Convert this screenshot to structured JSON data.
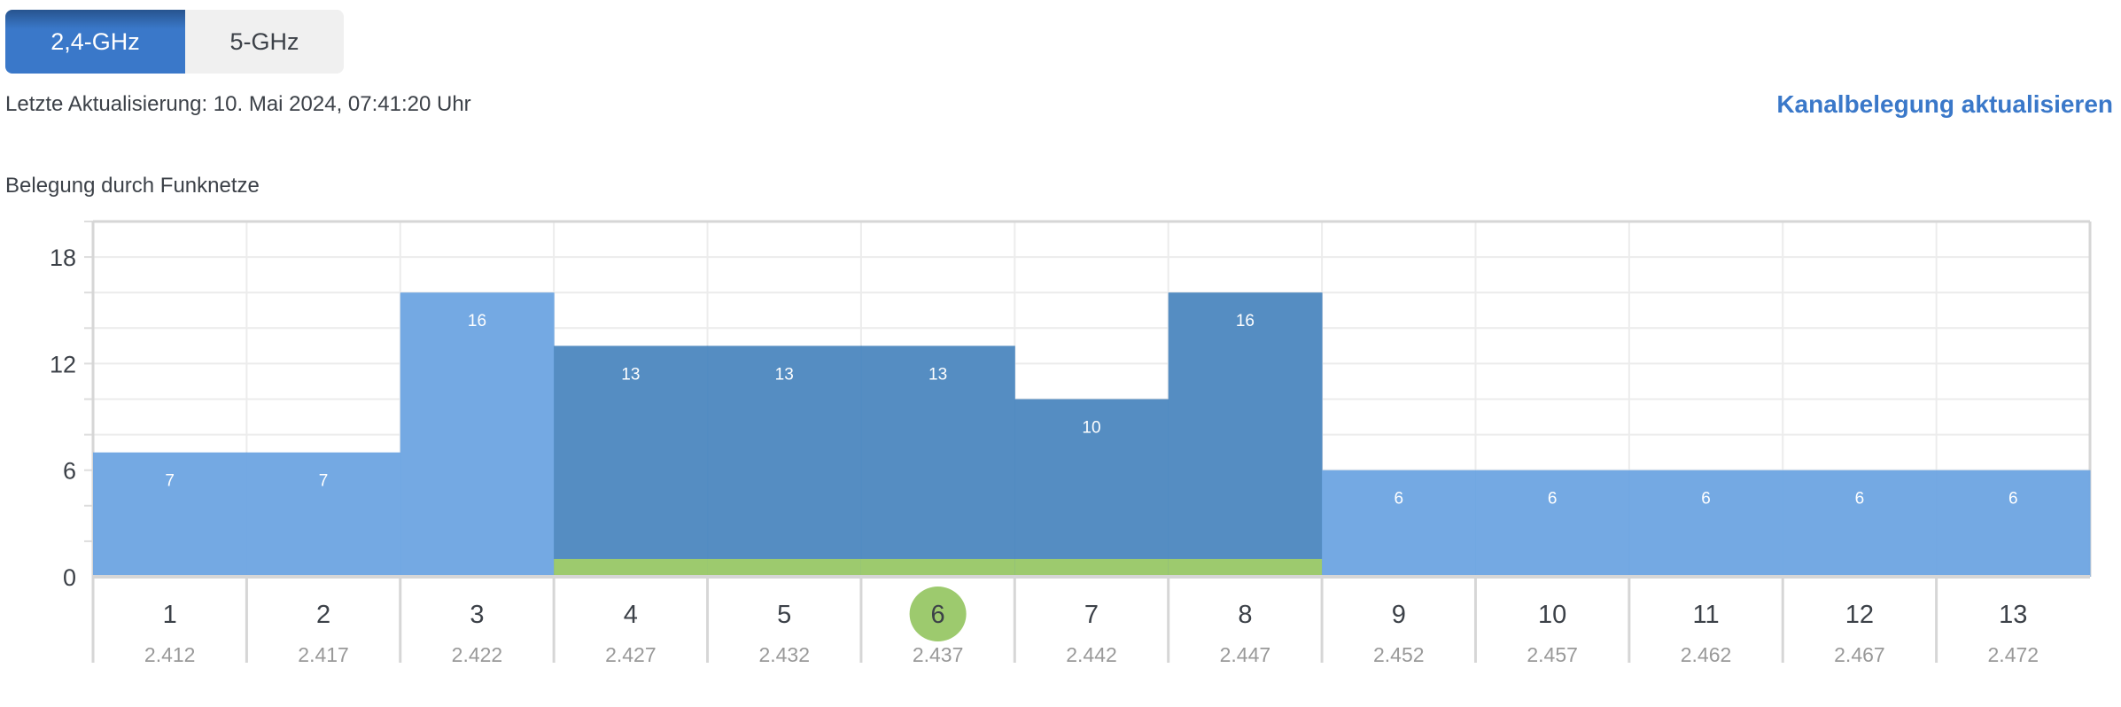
{
  "tabs": [
    {
      "label": "2,4-GHz",
      "active": true
    },
    {
      "label": "5-GHz",
      "active": false
    }
  ],
  "last_update": "Letzte Aktualisierung: 10. Mai 2024, 07:41:20 Uhr",
  "refresh_link": "Kanalbelegung aktualisieren",
  "chart_title": "Belegung durch Funknetze",
  "colors": {
    "accent": "#3a78c9",
    "bar_other": "#6fa6e2",
    "bar_overlap": "#5089c0",
    "own_network": "#9dca6e"
  },
  "chart_data": {
    "type": "bar",
    "categories": [
      "1",
      "2",
      "3",
      "4",
      "5",
      "6",
      "7",
      "8",
      "9",
      "10",
      "11",
      "12",
      "13"
    ],
    "frequencies": [
      "2.412",
      "2.417",
      "2.422",
      "2.427",
      "2.432",
      "2.437",
      "2.442",
      "2.447",
      "2.452",
      "2.457",
      "2.462",
      "2.467",
      "2.472"
    ],
    "values": [
      7,
      7,
      16,
      13,
      13,
      13,
      10,
      16,
      6,
      6,
      6,
      6,
      6
    ],
    "ylim": [
      0,
      20
    ],
    "yticks": [
      0,
      6,
      12,
      18
    ],
    "grid": true,
    "selected_channel": "6",
    "own_network_channels": [
      "4",
      "5",
      "6",
      "7",
      "8"
    ],
    "own_network_value": 1
  }
}
